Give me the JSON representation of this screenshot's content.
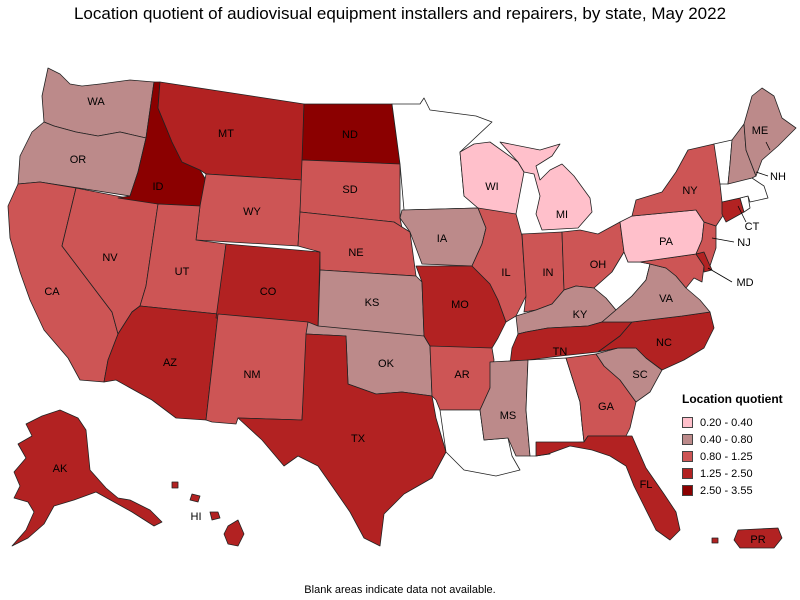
{
  "title": "Location quotient of audiovisual equipment installers and repairers, by state, May 2022",
  "note": "Blank areas indicate data not available.",
  "legend": {
    "title": "Location quotient",
    "items": [
      {
        "label": "0.20 - 0.40",
        "color": "#ffc0cb"
      },
      {
        "label": "0.40 - 0.80",
        "color": "#bc8a8a"
      },
      {
        "label": "0.80 - 1.25",
        "color": "#cd5555"
      },
      {
        "label": "1.25 - 2.50",
        "color": "#b22222"
      },
      {
        "label": "2.50 - 3.55",
        "color": "#8b0000"
      }
    ]
  },
  "colors": {
    "no_data": "#ffffff",
    "q1": "#ffc0cb",
    "q2": "#bc8a8a",
    "q3": "#cd5555",
    "q4": "#b22222",
    "q5": "#8b0000"
  },
  "states": [
    {
      "abbr": "WA",
      "class": "0.40 - 0.80"
    },
    {
      "abbr": "OR",
      "class": "0.40 - 0.80"
    },
    {
      "abbr": "CA",
      "class": "0.80 - 1.25"
    },
    {
      "abbr": "NV",
      "class": "0.80 - 1.25"
    },
    {
      "abbr": "ID",
      "class": "2.50 - 3.55"
    },
    {
      "abbr": "MT",
      "class": "1.25 - 2.50"
    },
    {
      "abbr": "WY",
      "class": "0.80 - 1.25"
    },
    {
      "abbr": "UT",
      "class": "0.80 - 1.25"
    },
    {
      "abbr": "AZ",
      "class": "1.25 - 2.50"
    },
    {
      "abbr": "CO",
      "class": "1.25 - 2.50"
    },
    {
      "abbr": "NM",
      "class": "0.80 - 1.25"
    },
    {
      "abbr": "ND",
      "class": "2.50 - 3.55"
    },
    {
      "abbr": "SD",
      "class": "0.80 - 1.25"
    },
    {
      "abbr": "NE",
      "class": "0.80 - 1.25"
    },
    {
      "abbr": "KS",
      "class": "0.40 - 0.80"
    },
    {
      "abbr": "OK",
      "class": "0.40 - 0.80"
    },
    {
      "abbr": "TX",
      "class": "1.25 - 2.50"
    },
    {
      "abbr": "MN",
      "class": "no data"
    },
    {
      "abbr": "IA",
      "class": "0.40 - 0.80"
    },
    {
      "abbr": "MO",
      "class": "1.25 - 2.50"
    },
    {
      "abbr": "AR",
      "class": "0.80 - 1.25"
    },
    {
      "abbr": "LA",
      "class": "no data"
    },
    {
      "abbr": "WI",
      "class": "0.20 - 0.40"
    },
    {
      "abbr": "IL",
      "class": "0.80 - 1.25"
    },
    {
      "abbr": "MI",
      "class": "0.20 - 0.40"
    },
    {
      "abbr": "IN",
      "class": "0.80 - 1.25"
    },
    {
      "abbr": "OH",
      "class": "0.80 - 1.25"
    },
    {
      "abbr": "KY",
      "class": "0.40 - 0.80"
    },
    {
      "abbr": "TN",
      "class": "1.25 - 2.50"
    },
    {
      "abbr": "MS",
      "class": "0.40 - 0.80"
    },
    {
      "abbr": "AL",
      "class": "no data"
    },
    {
      "abbr": "GA",
      "class": "0.80 - 1.25"
    },
    {
      "abbr": "FL",
      "class": "1.25 - 2.50"
    },
    {
      "abbr": "SC",
      "class": "0.40 - 0.80"
    },
    {
      "abbr": "NC",
      "class": "1.25 - 2.50"
    },
    {
      "abbr": "VA",
      "class": "0.40 - 0.80"
    },
    {
      "abbr": "WV",
      "class": "no data"
    },
    {
      "abbr": "MD",
      "class": "0.80 - 1.25"
    },
    {
      "abbr": "DE",
      "class": "1.25 - 2.50"
    },
    {
      "abbr": "PA",
      "class": "0.20 - 0.40"
    },
    {
      "abbr": "NJ",
      "class": "0.80 - 1.25"
    },
    {
      "abbr": "NY",
      "class": "0.80 - 1.25"
    },
    {
      "abbr": "CT",
      "class": "1.25 - 2.50"
    },
    {
      "abbr": "RI",
      "class": "no data"
    },
    {
      "abbr": "MA",
      "class": "no data"
    },
    {
      "abbr": "VT",
      "class": "no data"
    },
    {
      "abbr": "NH",
      "class": "0.40 - 0.80"
    },
    {
      "abbr": "ME",
      "class": "0.40 - 0.80"
    },
    {
      "abbr": "AK",
      "class": "1.25 - 2.50"
    },
    {
      "abbr": "HI",
      "class": "1.25 - 2.50"
    },
    {
      "abbr": "PR",
      "class": "1.25 - 2.50"
    }
  ]
}
